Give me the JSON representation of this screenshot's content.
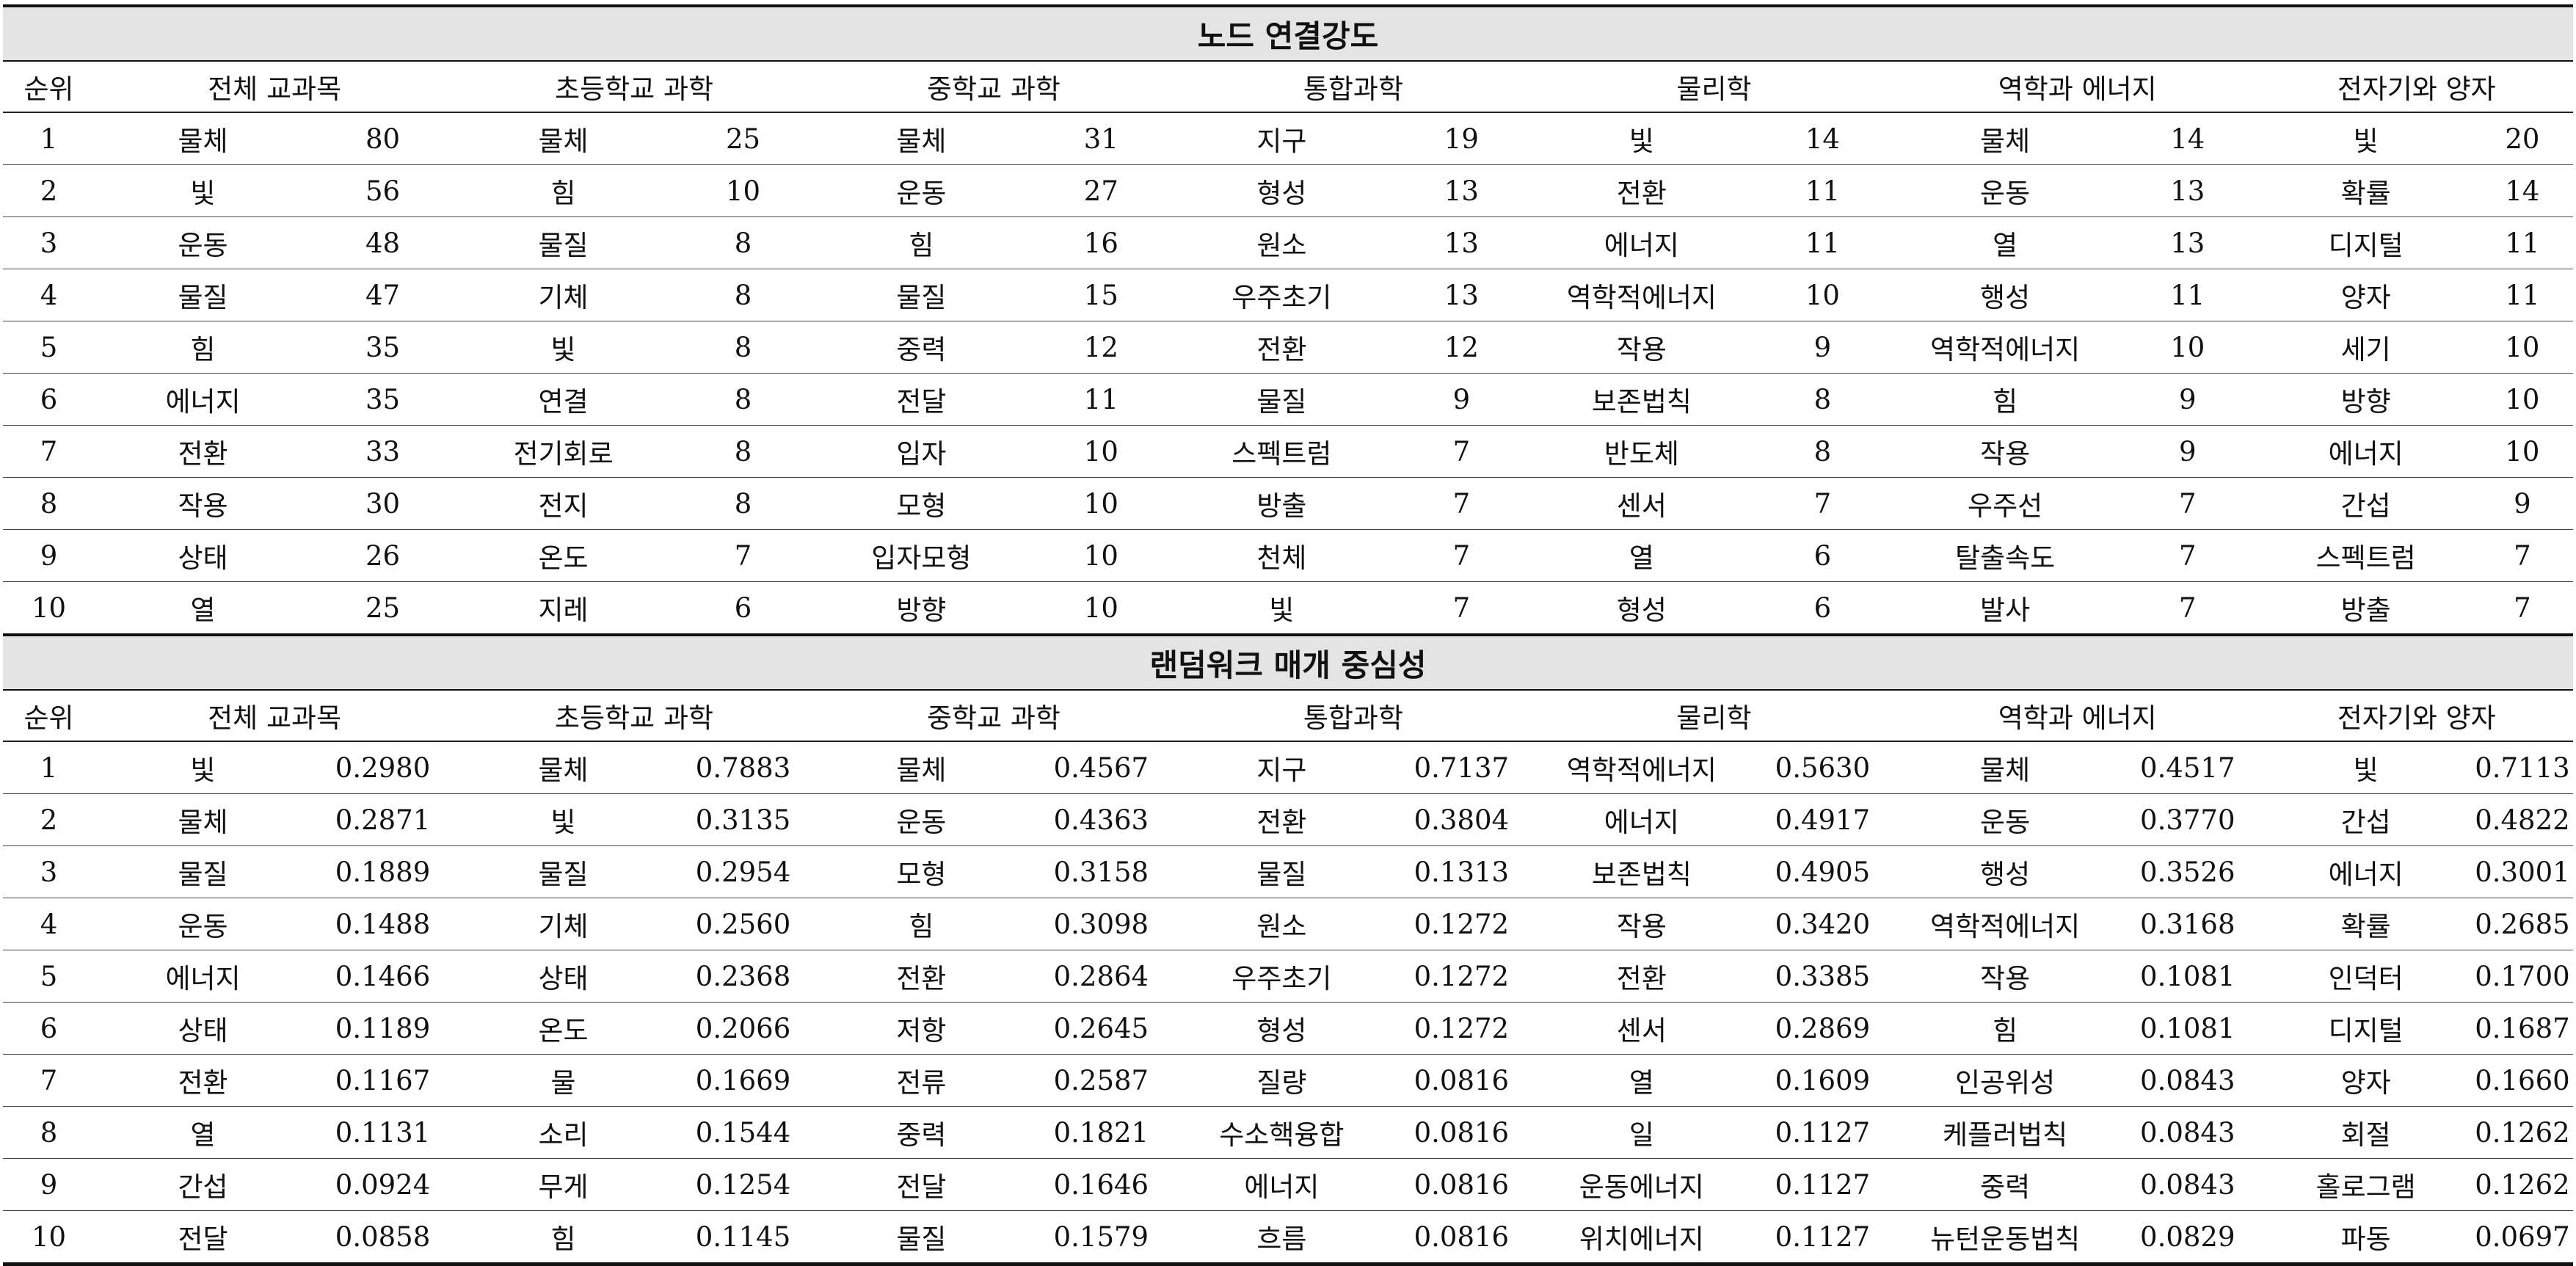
{
  "sections": [
    {
      "title": "노드 연결강도",
      "headers": [
        "순위",
        "전체 교과목",
        "초등학교 과학",
        "중학교 과학",
        "통합과학",
        "물리학",
        "역학과 에너지",
        "전자기와 양자"
      ],
      "rows": [
        {
          "rank": "1",
          "cells": [
            [
              "물체",
              "80"
            ],
            [
              "물체",
              "25"
            ],
            [
              "물체",
              "31"
            ],
            [
              "지구",
              "19"
            ],
            [
              "빛",
              "14"
            ],
            [
              "물체",
              "14"
            ],
            [
              "빛",
              "20"
            ]
          ]
        },
        {
          "rank": "2",
          "cells": [
            [
              "빛",
              "56"
            ],
            [
              "힘",
              "10"
            ],
            [
              "운동",
              "27"
            ],
            [
              "형성",
              "13"
            ],
            [
              "전환",
              "11"
            ],
            [
              "운동",
              "13"
            ],
            [
              "확률",
              "14"
            ]
          ]
        },
        {
          "rank": "3",
          "cells": [
            [
              "운동",
              "48"
            ],
            [
              "물질",
              "8"
            ],
            [
              "힘",
              "16"
            ],
            [
              "원소",
              "13"
            ],
            [
              "에너지",
              "11"
            ],
            [
              "열",
              "13"
            ],
            [
              "디지털",
              "11"
            ]
          ]
        },
        {
          "rank": "4",
          "cells": [
            [
              "물질",
              "47"
            ],
            [
              "기체",
              "8"
            ],
            [
              "물질",
              "15"
            ],
            [
              "우주초기",
              "13"
            ],
            [
              "역학적에너지",
              "10"
            ],
            [
              "행성",
              "11"
            ],
            [
              "양자",
              "11"
            ]
          ]
        },
        {
          "rank": "5",
          "cells": [
            [
              "힘",
              "35"
            ],
            [
              "빛",
              "8"
            ],
            [
              "중력",
              "12"
            ],
            [
              "전환",
              "12"
            ],
            [
              "작용",
              "9"
            ],
            [
              "역학적에너지",
              "10"
            ],
            [
              "세기",
              "10"
            ]
          ]
        },
        {
          "rank": "6",
          "cells": [
            [
              "에너지",
              "35"
            ],
            [
              "연결",
              "8"
            ],
            [
              "전달",
              "11"
            ],
            [
              "물질",
              "9"
            ],
            [
              "보존법칙",
              "8"
            ],
            [
              "힘",
              "9"
            ],
            [
              "방향",
              "10"
            ]
          ]
        },
        {
          "rank": "7",
          "cells": [
            [
              "전환",
              "33"
            ],
            [
              "전기회로",
              "8"
            ],
            [
              "입자",
              "10"
            ],
            [
              "스펙트럼",
              "7"
            ],
            [
              "반도체",
              "8"
            ],
            [
              "작용",
              "9"
            ],
            [
              "에너지",
              "10"
            ]
          ]
        },
        {
          "rank": "8",
          "cells": [
            [
              "작용",
              "30"
            ],
            [
              "전지",
              "8"
            ],
            [
              "모형",
              "10"
            ],
            [
              "방출",
              "7"
            ],
            [
              "센서",
              "7"
            ],
            [
              "우주선",
              "7"
            ],
            [
              "간섭",
              "9"
            ]
          ]
        },
        {
          "rank": "9",
          "cells": [
            [
              "상태",
              "26"
            ],
            [
              "온도",
              "7"
            ],
            [
              "입자모형",
              "10"
            ],
            [
              "천체",
              "7"
            ],
            [
              "열",
              "6"
            ],
            [
              "탈출속도",
              "7"
            ],
            [
              "스펙트럼",
              "7"
            ]
          ]
        },
        {
          "rank": "10",
          "cells": [
            [
              "열",
              "25"
            ],
            [
              "지레",
              "6"
            ],
            [
              "방향",
              "10"
            ],
            [
              "빛",
              "7"
            ],
            [
              "형성",
              "6"
            ],
            [
              "발사",
              "7"
            ],
            [
              "방출",
              "7"
            ]
          ]
        }
      ]
    },
    {
      "title": "랜덤워크 매개 중심성",
      "headers": [
        "순위",
        "전체 교과목",
        "초등학교 과학",
        "중학교 과학",
        "통합과학",
        "물리학",
        "역학과 에너지",
        "전자기와 양자"
      ],
      "rows": [
        {
          "rank": "1",
          "cells": [
            [
              "빛",
              "0.2980"
            ],
            [
              "물체",
              "0.7883"
            ],
            [
              "물체",
              "0.4567"
            ],
            [
              "지구",
              "0.7137"
            ],
            [
              "역학적에너지",
              "0.5630"
            ],
            [
              "물체",
              "0.4517"
            ],
            [
              "빛",
              "0.7113"
            ]
          ]
        },
        {
          "rank": "2",
          "cells": [
            [
              "물체",
              "0.2871"
            ],
            [
              "빛",
              "0.3135"
            ],
            [
              "운동",
              "0.4363"
            ],
            [
              "전환",
              "0.3804"
            ],
            [
              "에너지",
              "0.4917"
            ],
            [
              "운동",
              "0.3770"
            ],
            [
              "간섭",
              "0.4822"
            ]
          ]
        },
        {
          "rank": "3",
          "cells": [
            [
              "물질",
              "0.1889"
            ],
            [
              "물질",
              "0.2954"
            ],
            [
              "모형",
              "0.3158"
            ],
            [
              "물질",
              "0.1313"
            ],
            [
              "보존법칙",
              "0.4905"
            ],
            [
              "행성",
              "0.3526"
            ],
            [
              "에너지",
              "0.3001"
            ]
          ]
        },
        {
          "rank": "4",
          "cells": [
            [
              "운동",
              "0.1488"
            ],
            [
              "기체",
              "0.2560"
            ],
            [
              "힘",
              "0.3098"
            ],
            [
              "원소",
              "0.1272"
            ],
            [
              "작용",
              "0.3420"
            ],
            [
              "역학적에너지",
              "0.3168"
            ],
            [
              "확률",
              "0.2685"
            ]
          ]
        },
        {
          "rank": "5",
          "cells": [
            [
              "에너지",
              "0.1466"
            ],
            [
              "상태",
              "0.2368"
            ],
            [
              "전환",
              "0.2864"
            ],
            [
              "우주초기",
              "0.1272"
            ],
            [
              "전환",
              "0.3385"
            ],
            [
              "작용",
              "0.1081"
            ],
            [
              "인덕터",
              "0.1700"
            ]
          ]
        },
        {
          "rank": "6",
          "cells": [
            [
              "상태",
              "0.1189"
            ],
            [
              "온도",
              "0.2066"
            ],
            [
              "저항",
              "0.2645"
            ],
            [
              "형성",
              "0.1272"
            ],
            [
              "센서",
              "0.2869"
            ],
            [
              "힘",
              "0.1081"
            ],
            [
              "디지털",
              "0.1687"
            ]
          ]
        },
        {
          "rank": "7",
          "cells": [
            [
              "전환",
              "0.1167"
            ],
            [
              "물",
              "0.1669"
            ],
            [
              "전류",
              "0.2587"
            ],
            [
              "질량",
              "0.0816"
            ],
            [
              "열",
              "0.1609"
            ],
            [
              "인공위성",
              "0.0843"
            ],
            [
              "양자",
              "0.1660"
            ]
          ]
        },
        {
          "rank": "8",
          "cells": [
            [
              "열",
              "0.1131"
            ],
            [
              "소리",
              "0.1544"
            ],
            [
              "중력",
              "0.1821"
            ],
            [
              "수소핵융합",
              "0.0816"
            ],
            [
              "일",
              "0.1127"
            ],
            [
              "케플러법칙",
              "0.0843"
            ],
            [
              "회절",
              "0.1262"
            ]
          ]
        },
        {
          "rank": "9",
          "cells": [
            [
              "간섭",
              "0.0924"
            ],
            [
              "무게",
              "0.1254"
            ],
            [
              "전달",
              "0.1646"
            ],
            [
              "에너지",
              "0.0816"
            ],
            [
              "운동에너지",
              "0.1127"
            ],
            [
              "중력",
              "0.0843"
            ],
            [
              "홀로그램",
              "0.1262"
            ]
          ]
        },
        {
          "rank": "10",
          "cells": [
            [
              "전달",
              "0.0858"
            ],
            [
              "힘",
              "0.1145"
            ],
            [
              "물질",
              "0.1579"
            ],
            [
              "흐름",
              "0.0816"
            ],
            [
              "위치에너지",
              "0.1127"
            ],
            [
              "뉴턴운동법칙",
              "0.0829"
            ],
            [
              "파동",
              "0.0697"
            ]
          ]
        }
      ]
    }
  ]
}
